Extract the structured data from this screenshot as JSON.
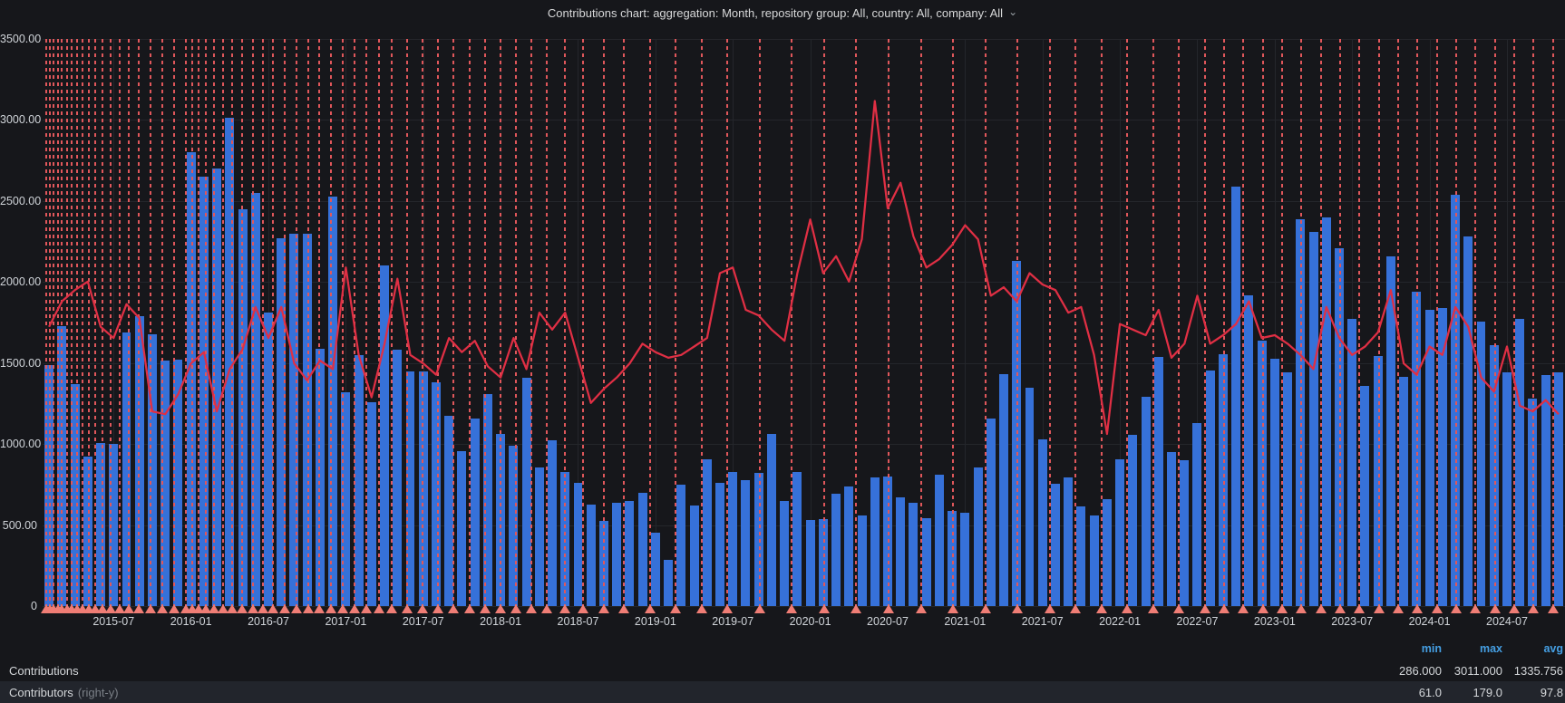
{
  "title": {
    "text": "Contributions chart: aggregation: Month, repository group: All, country: All, company: All",
    "chevron": "⌄"
  },
  "y_axis": {
    "labels": [
      "3500.00",
      "3000.00",
      "2500.00",
      "2000.00",
      "1500.00",
      "1000.00",
      "500.00",
      "0"
    ]
  },
  "x_axis": {
    "ticks": [
      {
        "label": "2015-07",
        "month_index": 5
      },
      {
        "label": "2016-01",
        "month_index": 11
      },
      {
        "label": "2016-07",
        "month_index": 17
      },
      {
        "label": "2017-01",
        "month_index": 23
      },
      {
        "label": "2017-07",
        "month_index": 29
      },
      {
        "label": "2018-01",
        "month_index": 35
      },
      {
        "label": "2018-07",
        "month_index": 41
      },
      {
        "label": "2019-01",
        "month_index": 47
      },
      {
        "label": "2019-07",
        "month_index": 53
      },
      {
        "label": "2020-01",
        "month_index": 59
      },
      {
        "label": "2020-07",
        "month_index": 65
      },
      {
        "label": "2021-01",
        "month_index": 71
      },
      {
        "label": "2021-07",
        "month_index": 77
      },
      {
        "label": "2022-01",
        "month_index": 83
      },
      {
        "label": "2022-07",
        "month_index": 89
      },
      {
        "label": "2023-01",
        "month_index": 95
      },
      {
        "label": "2023-07",
        "month_index": 101
      },
      {
        "label": "2024-01",
        "month_index": 107
      },
      {
        "label": "2024-07",
        "month_index": 113
      }
    ]
  },
  "legend": {
    "header": {
      "min": "min",
      "max": "max",
      "avg": "avg"
    },
    "rows": [
      {
        "label": "Contributions",
        "label_suffix": "",
        "min": "286.000",
        "max": "3011.000",
        "avg": "1335.756"
      },
      {
        "label": "Contributors",
        "label_suffix": "(right-y)",
        "min": "61.0",
        "max": "179.0",
        "avg": "97.8"
      }
    ]
  },
  "annotations": {
    "month_positions": [
      0.2,
      0.5,
      0.8,
      1.1,
      1.4,
      1.8,
      2.2,
      2.6,
      3.0,
      3.5,
      4.0,
      4.6,
      5.2,
      5.9,
      6.6,
      7.4,
      8.3,
      9.2,
      10.1,
      11.0,
      11.5,
      12.0,
      12.6,
      13.2,
      13.9,
      14.6,
      15.4,
      16.2,
      17.0,
      17.8,
      18.7,
      19.6,
      20.5,
      21.4,
      22.3,
      23.2,
      24.1,
      25.0,
      26.0,
      27.0,
      28.2,
      29.4,
      30.6,
      31.8,
      33.0,
      34.2,
      35.4,
      36.6,
      37.8,
      39.0,
      40.4,
      41.8,
      43.4,
      45.0,
      47.0,
      49.0,
      51.0,
      53.0,
      55.5,
      58.0,
      60.5,
      63.0,
      65.5,
      68.0,
      70.5,
      73.0,
      75.5,
      78.0,
      80.0,
      82.0,
      84.0,
      86.0,
      88.0,
      90.0,
      91.5,
      93.0,
      94.5,
      96.0,
      97.5,
      99.0,
      100.5,
      102.0,
      103.5,
      105.0,
      106.5,
      108.0,
      109.5,
      111.0,
      112.5,
      114.0,
      115.5,
      117.0
    ]
  },
  "colors": {
    "panel_bg": "#16171b",
    "bar": "#3671d9",
    "line": "#e02f44",
    "annotation": "#e0575b",
    "annotation_marker": "#ef7d75",
    "grid": "#24262b",
    "axis_text": "#d0d4d9",
    "legend_header": "#459fe3"
  },
  "chart_data": {
    "type": "bar",
    "title": "Contributions chart: aggregation: Month, repository group: All, country: All, company: All",
    "xlabel": "month",
    "ylabel": "",
    "left_axis": {
      "min": 0,
      "max": 3500,
      "tick_step": 500
    },
    "right_axis": {
      "min": 0,
      "max": 201,
      "labels_visible": false
    },
    "grid": true,
    "legend_position": "bottom-table",
    "months": [
      "2015-02",
      "2015-03",
      "2015-04",
      "2015-05",
      "2015-06",
      "2015-07",
      "2015-08",
      "2015-09",
      "2015-10",
      "2015-11",
      "2015-12",
      "2016-01",
      "2016-02",
      "2016-03",
      "2016-04",
      "2016-05",
      "2016-06",
      "2016-07",
      "2016-08",
      "2016-09",
      "2016-10",
      "2016-11",
      "2016-12",
      "2017-01",
      "2017-02",
      "2017-03",
      "2017-04",
      "2017-05",
      "2017-06",
      "2017-07",
      "2017-08",
      "2017-09",
      "2017-10",
      "2017-11",
      "2017-12",
      "2018-01",
      "2018-02",
      "2018-03",
      "2018-04",
      "2018-05",
      "2018-06",
      "2018-07",
      "2018-08",
      "2018-09",
      "2018-10",
      "2018-11",
      "2018-12",
      "2019-01",
      "2019-02",
      "2019-03",
      "2019-04",
      "2019-05",
      "2019-06",
      "2019-07",
      "2019-08",
      "2019-09",
      "2019-10",
      "2019-11",
      "2019-12",
      "2020-01",
      "2020-02",
      "2020-03",
      "2020-04",
      "2020-05",
      "2020-06",
      "2020-07",
      "2020-08",
      "2020-09",
      "2020-10",
      "2020-11",
      "2020-12",
      "2021-01",
      "2021-02",
      "2021-03",
      "2021-04",
      "2021-05",
      "2021-06",
      "2021-07",
      "2021-08",
      "2021-09",
      "2021-10",
      "2021-11",
      "2021-12",
      "2022-01",
      "2022-02",
      "2022-03",
      "2022-04",
      "2022-05",
      "2022-06",
      "2022-07",
      "2022-08",
      "2022-09",
      "2022-10",
      "2022-11",
      "2022-12",
      "2023-01",
      "2023-02",
      "2023-03",
      "2023-04",
      "2023-05",
      "2023-06",
      "2023-07",
      "2023-08",
      "2023-09",
      "2023-10",
      "2023-11",
      "2023-12",
      "2024-01",
      "2024-02",
      "2024-03",
      "2024-04",
      "2024-05",
      "2024-06",
      "2024-07",
      "2024-08",
      "2024-09",
      "2024-10",
      "2024-11"
    ],
    "series": [
      {
        "name": "Contributions",
        "type": "bar",
        "axis": "left",
        "color": "#3671d9",
        "stats": {
          "min": 286.0,
          "max": 3011.0,
          "avg": 1335.756
        },
        "values": [
          1490,
          1725,
          1370,
          920,
          1005,
          1000,
          1690,
          1790,
          1675,
          1515,
          1520,
          2800,
          2650,
          2700,
          3011,
          2450,
          2550,
          1810,
          2270,
          2300,
          2300,
          1590,
          2530,
          1320,
          1550,
          1260,
          2100,
          1585,
          1450,
          1450,
          1380,
          1175,
          955,
          1160,
          1310,
          1060,
          990,
          1410,
          855,
          1025,
          825,
          760,
          625,
          525,
          640,
          650,
          700,
          455,
          286,
          750,
          620,
          905,
          760,
          830,
          780,
          820,
          1060,
          650,
          830,
          530,
          535,
          695,
          740,
          560,
          795,
          800,
          670,
          640,
          540,
          810,
          585,
          575,
          855,
          1160,
          1430,
          2130,
          1345,
          1030,
          755,
          795,
          615,
          560,
          660,
          905,
          1055,
          1290,
          1535,
          950,
          900,
          1130,
          1455,
          1555,
          2590,
          1920,
          1640,
          1525,
          1440,
          2390,
          2310,
          2400,
          2210,
          1770,
          1360,
          1545,
          2160,
          1415,
          1940,
          1830,
          1840,
          2540,
          2280,
          1755,
          1610,
          1445,
          1770,
          1280,
          1425,
          1440
        ]
      },
      {
        "name": "Contributors",
        "type": "line",
        "axis": "right",
        "color": "#e02f44",
        "stats": {
          "min": 61.0,
          "max": 179.0,
          "avg": 97.8
        },
        "values": [
          99,
          108,
          112,
          115,
          99,
          95,
          107,
          102,
          69,
          68,
          75,
          86,
          90,
          69,
          84,
          91,
          106,
          95,
          106,
          86,
          80,
          87,
          84,
          120,
          89,
          74,
          93,
          116,
          89,
          86,
          82,
          95,
          90,
          94,
          85,
          81,
          95,
          84,
          104,
          98,
          104,
          88,
          72,
          77,
          81,
          86,
          93,
          90,
          88,
          89,
          92,
          95,
          118,
          120,
          105,
          103,
          98,
          94,
          118,
          137,
          118,
          124,
          115,
          130,
          179,
          141,
          150,
          131,
          120,
          123,
          128,
          135,
          130,
          110,
          113,
          108,
          118,
          114,
          112,
          104,
          106,
          89,
          61,
          100,
          98,
          96,
          105,
          88,
          93,
          110,
          93,
          96,
          100,
          108,
          95,
          96,
          93,
          89,
          84,
          106,
          95,
          89,
          92,
          97,
          112,
          86,
          82,
          92,
          89,
          106,
          99,
          81,
          76,
          92,
          71,
          69,
          73,
          68
        ]
      }
    ]
  }
}
